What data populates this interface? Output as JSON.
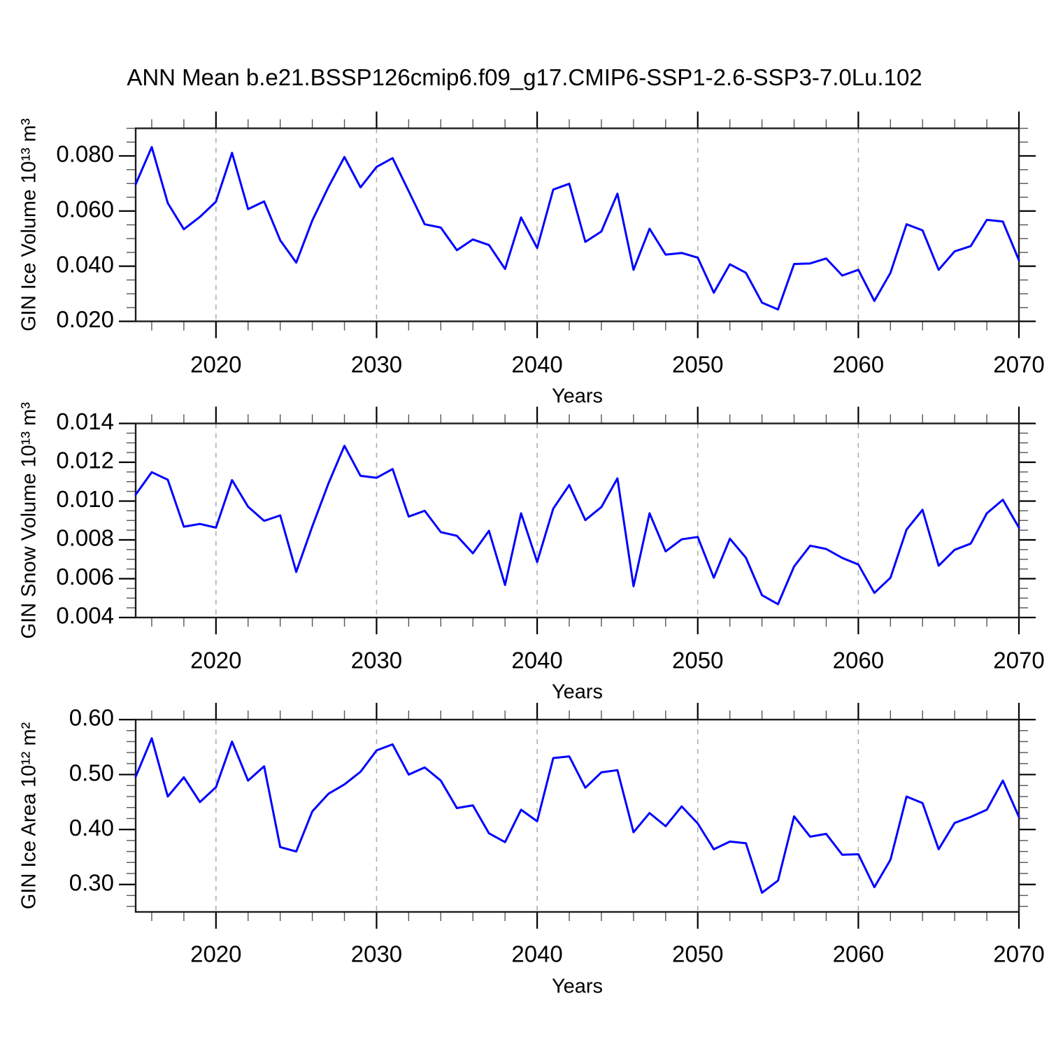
{
  "title": "ANN Mean b.e21.BSSP126cmip6.f09_g17.CMIP6-SSP1-2.6-SSP3-7.0Lu.102",
  "colors": {
    "line": "#0000FF",
    "grid": "#AEAEAE",
    "axis": "#1C1C1C",
    "text": "#000000"
  },
  "chart_data": [
    {
      "id": "ice-volume",
      "type": "line",
      "ylabel": "GIN Ice Volume 10¹³ m³",
      "xlabel": "Years",
      "xlim": [
        2015,
        2070
      ],
      "ylim": [
        0.02,
        0.09
      ],
      "yticks": [
        0.02,
        0.04,
        0.06,
        0.08
      ],
      "ytick_labels": [
        "0.020",
        "0.040",
        "0.060",
        "0.080"
      ],
      "y_minor_step": 0.005,
      "xticks": [
        2020,
        2030,
        2040,
        2050,
        2060,
        2070
      ],
      "xtick_labels": [
        "2020",
        "2030",
        "2040",
        "2050",
        "2060",
        "2070"
      ],
      "x_minor_step": 2,
      "x_gridlines": [
        2020,
        2030,
        2040,
        2050,
        2060
      ],
      "grid": "vertical-dashed",
      "legend": "none",
      "x": [
        2015,
        2016,
        2017,
        2018,
        2019,
        2020,
        2021,
        2022,
        2023,
        2024,
        2025,
        2026,
        2027,
        2028,
        2029,
        2030,
        2031,
        2032,
        2033,
        2034,
        2035,
        2036,
        2037,
        2038,
        2039,
        2040,
        2041,
        2042,
        2043,
        2044,
        2045,
        2046,
        2047,
        2048,
        2049,
        2050,
        2051,
        2052,
        2053,
        2054,
        2055,
        2056,
        2057,
        2058,
        2059,
        2060,
        2061,
        2062,
        2063,
        2064,
        2065,
        2066,
        2067,
        2068,
        2069,
        2070
      ],
      "values": [
        0.0697,
        0.0832,
        0.0629,
        0.0534,
        0.0579,
        0.0634,
        0.0811,
        0.0607,
        0.0635,
        0.0494,
        0.0413,
        0.0566,
        0.0687,
        0.0796,
        0.0686,
        0.076,
        0.0792,
        0.0672,
        0.0552,
        0.054,
        0.0458,
        0.0497,
        0.0477,
        0.039,
        0.0577,
        0.0466,
        0.0678,
        0.0699,
        0.0488,
        0.0526,
        0.0663,
        0.0387,
        0.0536,
        0.0442,
        0.0448,
        0.0431,
        0.0304,
        0.0407,
        0.0376,
        0.0268,
        0.0243,
        0.0408,
        0.041,
        0.0428,
        0.0366,
        0.0387,
        0.0274,
        0.0376,
        0.0552,
        0.053,
        0.0387,
        0.0454,
        0.0473,
        0.0568,
        0.0562,
        0.0422
      ]
    },
    {
      "id": "snow-volume",
      "type": "line",
      "ylabel": "GIN Snow Volume 10¹³ m³",
      "xlabel": "Years",
      "xlim": [
        2015,
        2070
      ],
      "ylim": [
        0.004,
        0.014
      ],
      "yticks": [
        0.004,
        0.006,
        0.008,
        0.01,
        0.012,
        0.014
      ],
      "ytick_labels": [
        "0.004",
        "0.006",
        "0.008",
        "0.010",
        "0.012",
        "0.014"
      ],
      "y_minor_step": 0.0005,
      "xticks": [
        2020,
        2030,
        2040,
        2050,
        2060,
        2070
      ],
      "xtick_labels": [
        "2020",
        "2030",
        "2040",
        "2050",
        "2060",
        "2070"
      ],
      "x_minor_step": 2,
      "x_gridlines": [
        2020,
        2030,
        2040,
        2050,
        2060
      ],
      "grid": "vertical-dashed",
      "legend": "none",
      "x": [
        2015,
        2016,
        2017,
        2018,
        2019,
        2020,
        2021,
        2022,
        2023,
        2024,
        2025,
        2026,
        2027,
        2028,
        2029,
        2030,
        2031,
        2032,
        2033,
        2034,
        2035,
        2036,
        2037,
        2038,
        2039,
        2040,
        2041,
        2042,
        2043,
        2044,
        2045,
        2046,
        2047,
        2048,
        2049,
        2050,
        2051,
        2052,
        2053,
        2054,
        2055,
        2056,
        2057,
        2058,
        2059,
        2060,
        2061,
        2062,
        2063,
        2064,
        2065,
        2066,
        2067,
        2068,
        2069,
        2070
      ],
      "values": [
        0.01033,
        0.01149,
        0.0111,
        0.00868,
        0.00882,
        0.00863,
        0.01108,
        0.00971,
        0.00898,
        0.00926,
        0.00635,
        0.0087,
        0.0109,
        0.01285,
        0.0113,
        0.0112,
        0.01165,
        0.0092,
        0.0095,
        0.0084,
        0.00821,
        0.00731,
        0.00847,
        0.00568,
        0.00937,
        0.00686,
        0.00961,
        0.01083,
        0.00902,
        0.00969,
        0.01117,
        0.00561,
        0.00937,
        0.00741,
        0.00803,
        0.00815,
        0.00605,
        0.00806,
        0.00708,
        0.00515,
        0.00469,
        0.00663,
        0.0077,
        0.00753,
        0.00707,
        0.00673,
        0.00527,
        0.00605,
        0.00853,
        0.00955,
        0.00667,
        0.00749,
        0.00781,
        0.00937,
        0.01007,
        0.00863
      ]
    },
    {
      "id": "ice-area",
      "type": "line",
      "ylabel": "GIN Ice Area 10¹² m²",
      "xlabel": "Years",
      "xlim": [
        2015,
        2070
      ],
      "ylim": [
        0.25,
        0.6
      ],
      "yticks": [
        0.3,
        0.4,
        0.5,
        0.6
      ],
      "ytick_labels": [
        "0.30",
        "0.40",
        "0.50",
        "0.60"
      ],
      "y_minor_step": 0.02,
      "xticks": [
        2020,
        2030,
        2040,
        2050,
        2060,
        2070
      ],
      "xtick_labels": [
        "2020",
        "2030",
        "2040",
        "2050",
        "2060",
        "2070"
      ],
      "x_minor_step": 2,
      "x_gridlines": [
        2020,
        2030,
        2040,
        2050,
        2060
      ],
      "grid": "vertical-dashed",
      "legend": "none",
      "x": [
        2015,
        2016,
        2017,
        2018,
        2019,
        2020,
        2021,
        2022,
        2023,
        2024,
        2025,
        2026,
        2027,
        2028,
        2029,
        2030,
        2031,
        2032,
        2033,
        2034,
        2035,
        2036,
        2037,
        2038,
        2039,
        2040,
        2041,
        2042,
        2043,
        2044,
        2045,
        2046,
        2047,
        2048,
        2049,
        2050,
        2051,
        2052,
        2053,
        2054,
        2055,
        2056,
        2057,
        2058,
        2059,
        2060,
        2061,
        2062,
        2063,
        2064,
        2065,
        2066,
        2067,
        2068,
        2069,
        2070
      ],
      "values": [
        0.496,
        0.566,
        0.46,
        0.495,
        0.45,
        0.477,
        0.56,
        0.489,
        0.515,
        0.368,
        0.36,
        0.433,
        0.465,
        0.482,
        0.505,
        0.544,
        0.555,
        0.5,
        0.513,
        0.489,
        0.439,
        0.444,
        0.393,
        0.377,
        0.436,
        0.415,
        0.53,
        0.533,
        0.476,
        0.504,
        0.508,
        0.395,
        0.43,
        0.406,
        0.442,
        0.411,
        0.364,
        0.378,
        0.375,
        0.285,
        0.307,
        0.424,
        0.387,
        0.392,
        0.354,
        0.355,
        0.295,
        0.345,
        0.46,
        0.448,
        0.364,
        0.412,
        0.423,
        0.436,
        0.489,
        0.423
      ]
    }
  ]
}
